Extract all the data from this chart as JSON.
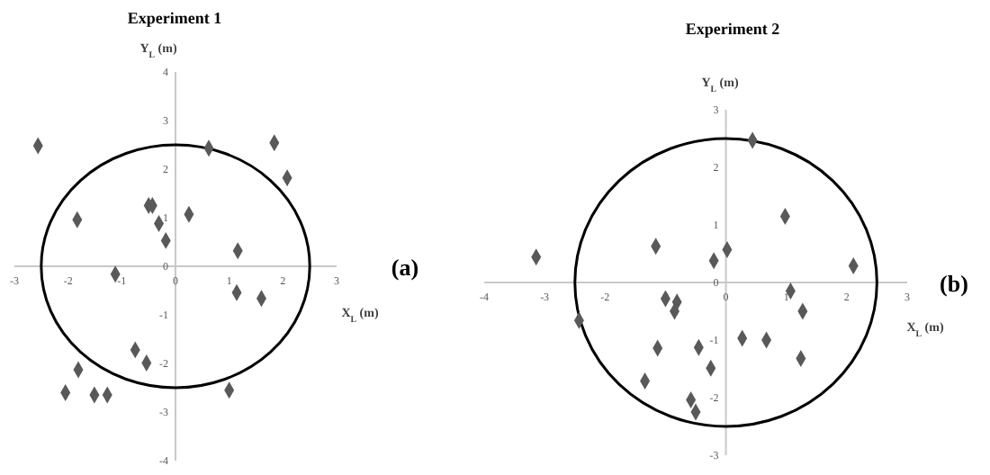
{
  "chart_data": [
    {
      "type": "scatter",
      "title": "Experiment  1",
      "xlabel": "X$_{L}$ (m)",
      "ylabel": "Y$_{L}$ (m)",
      "annotations": [
        "(a)"
      ],
      "xlim": [
        -3,
        3
      ],
      "ylim": [
        -4,
        4
      ],
      "xticks": [
        -3,
        -2,
        -1,
        0,
        1,
        2,
        3
      ],
      "yticks": [
        -4,
        -3,
        -2,
        -1,
        0,
        1,
        2,
        3,
        4
      ],
      "grid": false,
      "marker": "diamond",
      "series": [
        {
          "color": "#595959",
          "x": [
            -2.56,
            0.62,
            1.84,
            2.08,
            -1.83,
            -0.5,
            -0.43,
            -0.31,
            0.25,
            -0.18,
            1.16,
            -1.12,
            1.14,
            1.6,
            -0.75,
            -0.54,
            -1.81,
            -2.05,
            -1.51,
            -1.27,
            1.0
          ],
          "values": [
            2.48,
            2.43,
            2.54,
            1.82,
            0.96,
            1.25,
            1.25,
            0.88,
            1.07,
            0.53,
            0.32,
            -0.16,
            -0.54,
            -0.66,
            -1.72,
            -1.99,
            -2.13,
            -2.6,
            -2.65,
            -2.65,
            -2.55
          ]
        }
      ]
    },
    {
      "type": "scatter",
      "title": "Experiment  2",
      "xlabel": "X$_{L}$ (m)",
      "ylabel": "Y$_{L}$ (m)",
      "annotations": [
        "(b)"
      ],
      "xlim": [
        -4,
        3
      ],
      "ylim": [
        -3,
        3
      ],
      "xticks": [
        -4,
        -3,
        -2,
        -1,
        0,
        1,
        2,
        3
      ],
      "yticks": [
        -3,
        -2,
        -1,
        0,
        1,
        2,
        3
      ],
      "grid": false,
      "marker": "diamond",
      "series": [
        {
          "color": "#595959",
          "x": [
            -3.14,
            0.44,
            0.98,
            -1.16,
            0.02,
            -0.2,
            2.11,
            -2.43,
            -1.0,
            -0.81,
            -0.85,
            1.07,
            1.27,
            0.27,
            0.67,
            -1.13,
            -0.45,
            1.24,
            -0.25,
            -1.34,
            -0.58,
            -0.5
          ],
          "values": [
            0.44,
            2.47,
            1.15,
            0.63,
            0.57,
            0.38,
            0.29,
            -0.66,
            -0.28,
            -0.34,
            -0.5,
            -0.15,
            -0.5,
            -0.97,
            -1.0,
            -1.14,
            -1.13,
            -1.32,
            -1.49,
            -1.71,
            -2.04,
            -2.25
          ]
        }
      ]
    }
  ]
}
